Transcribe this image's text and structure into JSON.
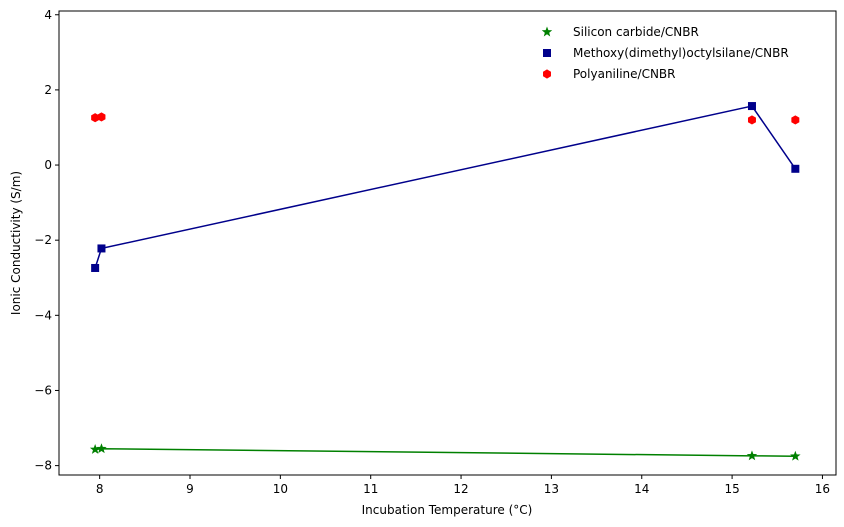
{
  "chart_data": {
    "type": "scatter",
    "title": "",
    "xlabel": "Incubation Temperature (°C)",
    "ylabel": "Ionic Conductivity (S/m)",
    "xlim": [
      7.55,
      16.15
    ],
    "ylim": [
      -8.25,
      4.1
    ],
    "xticks": [
      8,
      9,
      10,
      11,
      12,
      13,
      14,
      15,
      16
    ],
    "yticks": [
      -8,
      -6,
      -4,
      -2,
      0,
      2,
      4
    ],
    "grid": false,
    "legend_position": "top-right",
    "series": [
      {
        "name": "Silicon carbide/CNBR",
        "color": "#008000",
        "marker": "star",
        "line": true,
        "x": [
          7.95,
          8.02,
          15.22,
          15.7
        ],
        "y": [
          -7.57,
          -7.55,
          -7.74,
          -7.75
        ]
      },
      {
        "name": "Methoxy(dimethyl)octylsilane/CNBR",
        "color": "#00008b",
        "marker": "square",
        "line": true,
        "x": [
          7.95,
          8.02,
          15.22,
          15.7
        ],
        "y": [
          -2.74,
          -2.22,
          1.57,
          -0.1
        ]
      },
      {
        "name": "Polyaniline/CNBR",
        "color": "#ff0000",
        "marker": "hexagon",
        "line": false,
        "x": [
          7.95,
          8.02,
          15.22,
          15.7
        ],
        "y": [
          1.26,
          1.28,
          1.2,
          1.2
        ]
      }
    ]
  }
}
